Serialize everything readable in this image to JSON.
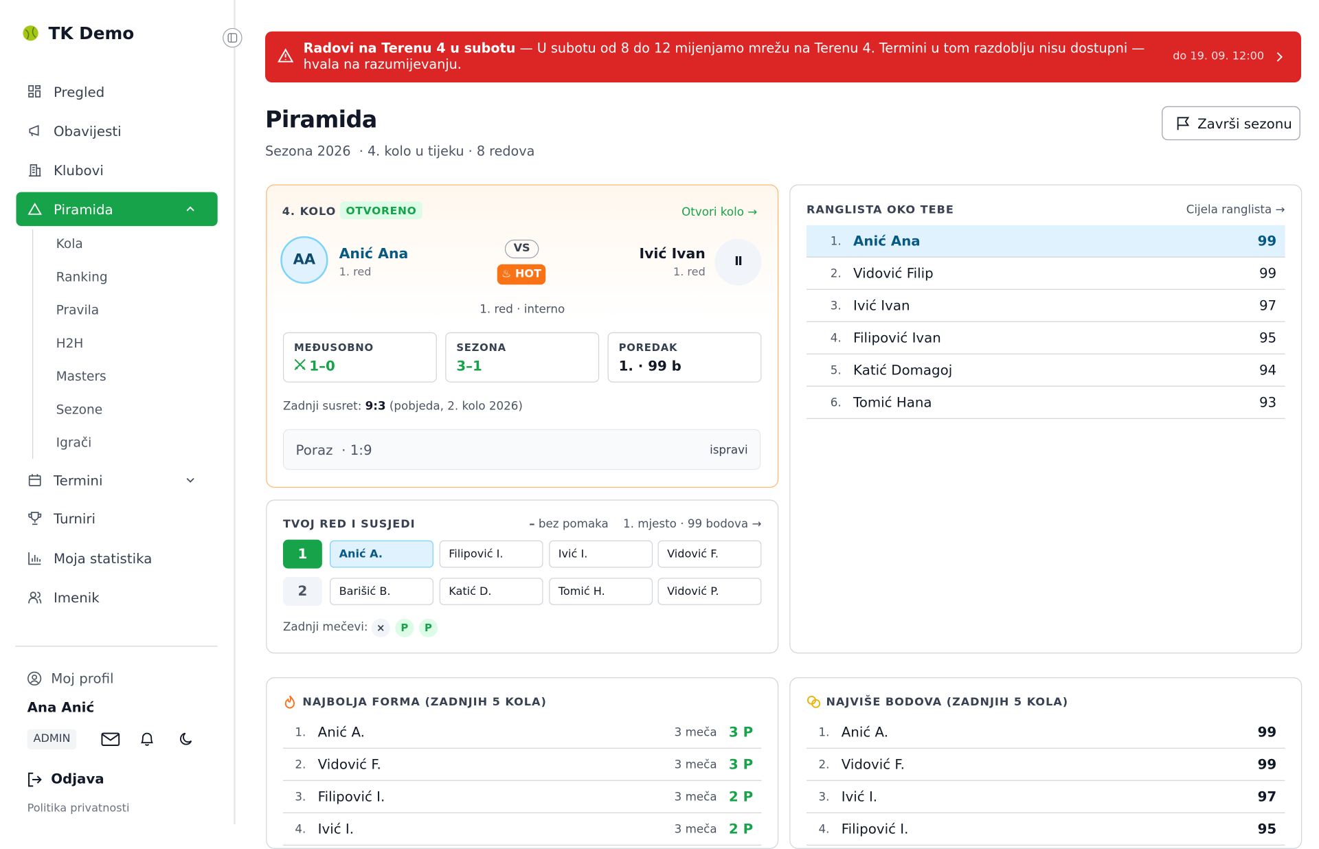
{
  "sidebar": {
    "brand": "TK Demo",
    "nav": [
      "Pregled",
      "Obavijesti",
      "Klubovi",
      "Piramida"
    ],
    "subnav": [
      "Kola",
      "Ranking",
      "Pravila",
      "H2H",
      "Masters",
      "Sezone",
      "Igrači"
    ],
    "nav2": [
      "Termini",
      "Turniri",
      "Moja statistika",
      "Imenik"
    ],
    "profile": "Moj profil",
    "user": "Ana Anić",
    "role": "ADMIN",
    "logout": "Odjava",
    "privacy": "Politika privatnosti"
  },
  "banner": {
    "title": "Radovi na Terenu 4 u subotu",
    "text": "— U subotu od 8 do 12 mijenjamo mrežu na Terenu 4. Termini u tom razdoblju nisu dostupni — hvala na razumijevanju.",
    "date": "do 19. 09. 12:00"
  },
  "header": {
    "title": "Piramida",
    "season": "Sezona 2026",
    "meta": "· 4. kolo u tijeku · 8 redova",
    "button": "Završi sezonu"
  },
  "match": {
    "round": "4. KOLO",
    "status": "OTVORENO",
    "link": "Otvori kolo",
    "player1": {
      "initials": "AA",
      "name": "Anić Ana",
      "row": "1. red"
    },
    "vs": "VS",
    "hot": "HOT",
    "player2": {
      "initials": "II",
      "name": "Ivić Ivan",
      "row": "1. red"
    },
    "meta": "1. red · interno",
    "stats": [
      {
        "label": "MEĐUSOBNO",
        "value": "1–0"
      },
      {
        "label": "SEZONA",
        "value": "3–1"
      },
      {
        "label": "POREDAK",
        "value": "1. · 99 b"
      }
    ],
    "last_label": "Zadnji susret:",
    "last_score": "9:3",
    "last_note": "(pobjeda, 2. kolo 2026)",
    "result": "Poraz",
    "result_score": "· 1:9",
    "fix": "ispravi"
  },
  "ranking": {
    "title": "RANGLISTA OKO TEBE",
    "link": "Cijela ranglista",
    "rows": [
      {
        "rank": "1.",
        "name": "Anić Ana",
        "points": 99
      },
      {
        "rank": "2.",
        "name": "Vidović Filip",
        "points": 99
      },
      {
        "rank": "3.",
        "name": "Ivić Ivan",
        "points": 97
      },
      {
        "rank": "4.",
        "name": "Filipović Ivan",
        "points": 95
      },
      {
        "rank": "5.",
        "name": "Katić Domagoj",
        "points": 94
      },
      {
        "rank": "6.",
        "name": "Tomić Hana",
        "points": 93
      }
    ]
  },
  "neighbors": {
    "title": "TVOJ RED I SUSJEDI",
    "status": "bez pomaka",
    "summary": "1. mjesto · 99 bodova",
    "rows": [
      {
        "row": "1",
        "players": [
          "Anić A.",
          "Filipović I.",
          "Ivić I.",
          "Vidović F."
        ]
      },
      {
        "row": "2",
        "players": [
          "Barišić B.",
          "Katić D.",
          "Tomić H.",
          "Vidović P."
        ]
      }
    ],
    "last_label": "Zadnji mečevi:",
    "results": [
      "×",
      "P",
      "P"
    ]
  },
  "form": {
    "title": "NAJBOLJA FORMA (ZADNJIH 5 KOLA)",
    "rows": [
      {
        "rank": "1.",
        "name": "Anić A.",
        "matches": "3 meča",
        "points": "3 P"
      },
      {
        "rank": "2.",
        "name": "Vidović F.",
        "matches": "3 meča",
        "points": "3 P"
      },
      {
        "rank": "3.",
        "name": "Filipović I.",
        "matches": "3 meča",
        "points": "2 P"
      },
      {
        "rank": "4.",
        "name": "Ivić I.",
        "matches": "3 meča",
        "points": "2 P"
      }
    ]
  },
  "top_points": {
    "title": "NAJVIŠE BODOVA (ZADNJIH 5 KOLA)",
    "rows": [
      {
        "rank": "1.",
        "name": "Anić A.",
        "points": 99
      },
      {
        "rank": "2.",
        "name": "Vidović F.",
        "points": 99
      },
      {
        "rank": "3.",
        "name": "Ivić I.",
        "points": 97
      },
      {
        "rank": "4.",
        "name": "Filipović I.",
        "points": 95
      }
    ]
  }
}
